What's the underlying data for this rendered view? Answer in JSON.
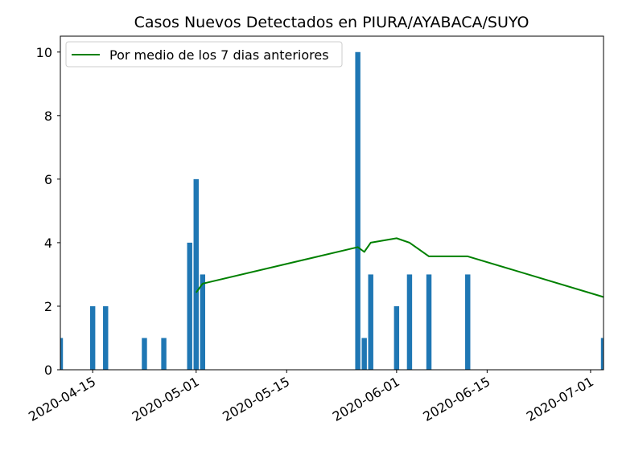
{
  "chart_data": {
    "type": "bar",
    "title": "Casos Nuevos Detectados en PIURA/AYABACA/SUYO",
    "xlabel": "",
    "ylabel": "",
    "x_range": [
      "2020-04-10",
      "2020-07-03"
    ],
    "ylim": [
      0,
      10.5
    ],
    "y_ticks": [
      0,
      2,
      4,
      6,
      8,
      10
    ],
    "x_ticks": [
      "2020-04-15",
      "2020-05-01",
      "2020-05-15",
      "2020-06-01",
      "2020-06-15",
      "2020-07-01"
    ],
    "grid": false,
    "legend_position": "top-left",
    "colors": {
      "bars": "#1f77b4",
      "line": "#008000"
    },
    "series": [
      {
        "type": "bar",
        "points": [
          {
            "date": "2020-04-10",
            "value": 1
          },
          {
            "date": "2020-04-15",
            "value": 2
          },
          {
            "date": "2020-04-17",
            "value": 2
          },
          {
            "date": "2020-04-23",
            "value": 1
          },
          {
            "date": "2020-04-26",
            "value": 1
          },
          {
            "date": "2020-04-30",
            "value": 4
          },
          {
            "date": "2020-05-01",
            "value": 6
          },
          {
            "date": "2020-05-02",
            "value": 3
          },
          {
            "date": "2020-05-26",
            "value": 10
          },
          {
            "date": "2020-05-27",
            "value": 1
          },
          {
            "date": "2020-05-28",
            "value": 3
          },
          {
            "date": "2020-06-01",
            "value": 2
          },
          {
            "date": "2020-06-03",
            "value": 3
          },
          {
            "date": "2020-06-06",
            "value": 3
          },
          {
            "date": "2020-06-12",
            "value": 3
          },
          {
            "date": "2020-07-03",
            "value": 1
          }
        ]
      },
      {
        "type": "line",
        "name": "Por medio de los 7 dias anteriores",
        "points": [
          {
            "date": "2020-05-01",
            "value": 2.43
          },
          {
            "date": "2020-05-02",
            "value": 2.71
          },
          {
            "date": "2020-05-26",
            "value": 3.86
          },
          {
            "date": "2020-05-27",
            "value": 3.71
          },
          {
            "date": "2020-05-28",
            "value": 4.0
          },
          {
            "date": "2020-06-01",
            "value": 4.14
          },
          {
            "date": "2020-06-03",
            "value": 4.0
          },
          {
            "date": "2020-06-06",
            "value": 3.57
          },
          {
            "date": "2020-06-12",
            "value": 3.57
          },
          {
            "date": "2020-07-03",
            "value": 2.29
          }
        ]
      }
    ]
  }
}
